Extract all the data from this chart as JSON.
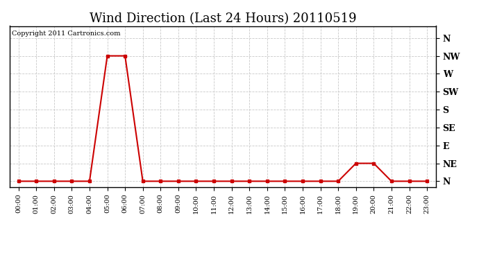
{
  "title": "Wind Direction (Last 24 Hours) 20110519",
  "copyright_text": "Copyright 2011 Cartronics.com",
  "background_color": "#ffffff",
  "plot_bg_color": "#ffffff",
  "grid_color": "#c8c8c8",
  "line_color": "#cc0000",
  "marker_color": "#cc0000",
  "hours": [
    0,
    1,
    2,
    3,
    4,
    5,
    6,
    7,
    8,
    9,
    10,
    11,
    12,
    13,
    14,
    15,
    16,
    17,
    18,
    19,
    20,
    21,
    22,
    23
  ],
  "values": [
    0,
    0,
    0,
    0,
    0,
    315,
    315,
    0,
    0,
    0,
    0,
    0,
    0,
    0,
    0,
    0,
    0,
    0,
    0,
    45,
    45,
    0,
    0,
    0
  ],
  "yticks_vals": [
    360,
    315,
    270,
    225,
    180,
    135,
    90,
    45,
    0
  ],
  "ytick_labels": [
    "N",
    "NW",
    "W",
    "SW",
    "S",
    "SE",
    "E",
    "NE",
    "N"
  ],
  "ylim": [
    -15,
    390
  ],
  "xlim": [
    -0.5,
    23.5
  ],
  "xtick_labels": [
    "00:00",
    "01:00",
    "02:00",
    "03:00",
    "04:00",
    "05:00",
    "06:00",
    "07:00",
    "08:00",
    "09:00",
    "10:00",
    "11:00",
    "12:00",
    "13:00",
    "14:00",
    "15:00",
    "16:00",
    "17:00",
    "18:00",
    "19:00",
    "20:00",
    "21:00",
    "22:00",
    "23:00"
  ],
  "title_fontsize": 13,
  "label_fontsize": 8,
  "copyright_fontsize": 7,
  "figsize": [
    6.9,
    3.75
  ],
  "dpi": 100
}
